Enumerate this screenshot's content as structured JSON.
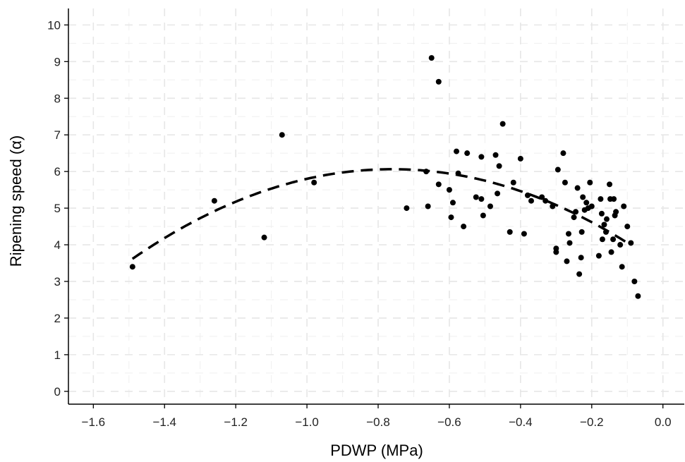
{
  "chart_data": {
    "type": "scatter",
    "title": "",
    "xlabel": "PDWP (MPa)",
    "ylabel": "Ripening speed (α)",
    "xlim": [
      -1.67,
      0.06
    ],
    "ylim": [
      -0.35,
      10.45
    ],
    "xticks": [
      -1.6,
      -1.4,
      -1.2,
      -1.0,
      -0.8,
      -0.6,
      -0.4,
      -0.2,
      0.0
    ],
    "xtick_labels": [
      "−1.6",
      "−1.4",
      "−1.2",
      "−1.0",
      "−0.8",
      "−0.6",
      "−0.4",
      "−0.2",
      "0.0"
    ],
    "yticks": [
      0,
      1,
      2,
      3,
      4,
      5,
      6,
      7,
      8,
      9,
      10
    ],
    "ytick_labels": [
      "0",
      "1",
      "2",
      "3",
      "4",
      "5",
      "6",
      "7",
      "8",
      "9",
      "10"
    ],
    "grid": true,
    "grid_style": "dashed",
    "colors": {
      "points": "#000000",
      "fit": "#000000",
      "grid": "#e6e6e6",
      "axis": "#000000"
    },
    "series": [
      {
        "type": "scatter",
        "points": [
          [
            -1.49,
            3.4
          ],
          [
            -1.26,
            5.2
          ],
          [
            -1.12,
            4.2
          ],
          [
            -1.07,
            7.0
          ],
          [
            -0.98,
            5.7
          ],
          [
            -0.72,
            5.0
          ],
          [
            -0.665,
            6.0
          ],
          [
            -0.66,
            5.05
          ],
          [
            -0.65,
            9.1
          ],
          [
            -0.63,
            8.45
          ],
          [
            -0.63,
            5.65
          ],
          [
            -0.6,
            5.5
          ],
          [
            -0.595,
            4.75
          ],
          [
            -0.59,
            5.15
          ],
          [
            -0.58,
            6.55
          ],
          [
            -0.575,
            5.95
          ],
          [
            -0.56,
            4.5
          ],
          [
            -0.55,
            6.5
          ],
          [
            -0.525,
            5.3
          ],
          [
            -0.51,
            6.4
          ],
          [
            -0.51,
            5.25
          ],
          [
            -0.505,
            4.8
          ],
          [
            -0.485,
            5.05
          ],
          [
            -0.47,
            6.45
          ],
          [
            -0.465,
            5.4
          ],
          [
            -0.46,
            6.15
          ],
          [
            -0.45,
            7.3
          ],
          [
            -0.43,
            4.35
          ],
          [
            -0.42,
            5.7
          ],
          [
            -0.4,
            6.35
          ],
          [
            -0.39,
            4.3
          ],
          [
            -0.38,
            5.35
          ],
          [
            -0.37,
            5.2
          ],
          [
            -0.34,
            5.3
          ],
          [
            -0.33,
            5.2
          ],
          [
            -0.31,
            5.05
          ],
          [
            -0.3,
            3.8
          ],
          [
            -0.3,
            3.9
          ],
          [
            -0.295,
            6.05
          ],
          [
            -0.28,
            6.5
          ],
          [
            -0.275,
            5.7
          ],
          [
            -0.27,
            3.55
          ],
          [
            -0.265,
            4.3
          ],
          [
            -0.262,
            4.05
          ],
          [
            -0.25,
            4.75
          ],
          [
            -0.245,
            4.9
          ],
          [
            -0.24,
            5.55
          ],
          [
            -0.235,
            3.2
          ],
          [
            -0.23,
            3.65
          ],
          [
            -0.228,
            4.35
          ],
          [
            -0.225,
            5.3
          ],
          [
            -0.22,
            4.95
          ],
          [
            -0.215,
            5.15
          ],
          [
            -0.21,
            5.0
          ],
          [
            -0.205,
            5.7
          ],
          [
            -0.2,
            5.05
          ],
          [
            -0.18,
            3.7
          ],
          [
            -0.175,
            5.25
          ],
          [
            -0.172,
            4.85
          ],
          [
            -0.17,
            4.15
          ],
          [
            -0.165,
            4.55
          ],
          [
            -0.16,
            4.35
          ],
          [
            -0.158,
            4.7
          ],
          [
            -0.15,
            5.65
          ],
          [
            -0.148,
            5.25
          ],
          [
            -0.145,
            3.8
          ],
          [
            -0.14,
            4.15
          ],
          [
            -0.138,
            5.25
          ],
          [
            -0.135,
            4.8
          ],
          [
            -0.132,
            4.9
          ],
          [
            -0.12,
            4.0
          ],
          [
            -0.115,
            3.4
          ],
          [
            -0.11,
            5.05
          ],
          [
            -0.1,
            4.5
          ],
          [
            -0.09,
            4.05
          ],
          [
            -0.08,
            3.0
          ],
          [
            -0.07,
            2.6
          ]
        ]
      },
      {
        "type": "fit",
        "style": "dashed",
        "x_range": [
          -1.49,
          -0.09
        ],
        "model": "y = a + b*x + c*x^2",
        "coefficients": {
          "a": 3.4,
          "b": -7.0,
          "c": -4.6
        }
      }
    ]
  }
}
